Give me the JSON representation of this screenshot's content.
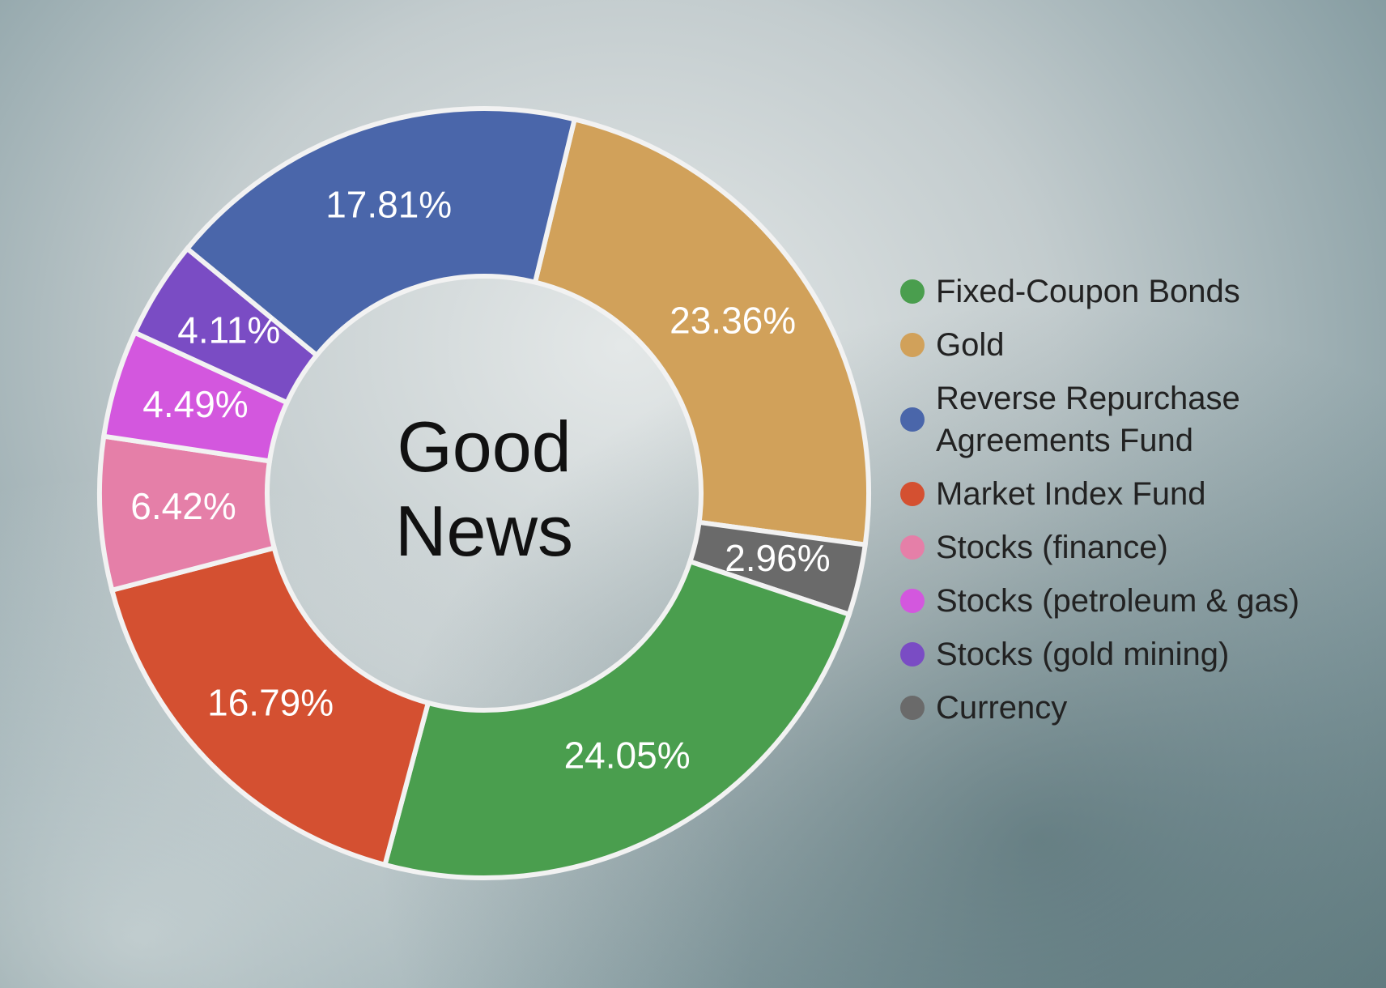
{
  "chart_data": {
    "type": "pie",
    "center_text": "Good News",
    "categories": [
      "Fixed-Coupon Bonds",
      "Gold",
      "Reverse Repurchase Agreements Fund",
      "Market Index Fund",
      "Stocks (finance)",
      "Stocks (petroleum & gas)",
      "Stocks (gold mining)",
      "Currency"
    ],
    "values": [
      24.05,
      23.36,
      17.81,
      16.79,
      6.42,
      4.49,
      4.11,
      2.96
    ],
    "value_labels": [
      "24.05%",
      "23.36%",
      "17.81%",
      "16.79%",
      "6.42%",
      "4.49%",
      "4.11%",
      "2.96%"
    ],
    "colors": [
      "#4a9e4e",
      "#d1a15a",
      "#4a66aa",
      "#d45031",
      "#e57fa8",
      "#d357de",
      "#7a4cc4",
      "#6a6a6a"
    ],
    "slice_order": [
      1,
      7,
      0,
      3,
      4,
      5,
      6,
      2
    ],
    "start_angle": 13.6,
    "legend": "right"
  }
}
